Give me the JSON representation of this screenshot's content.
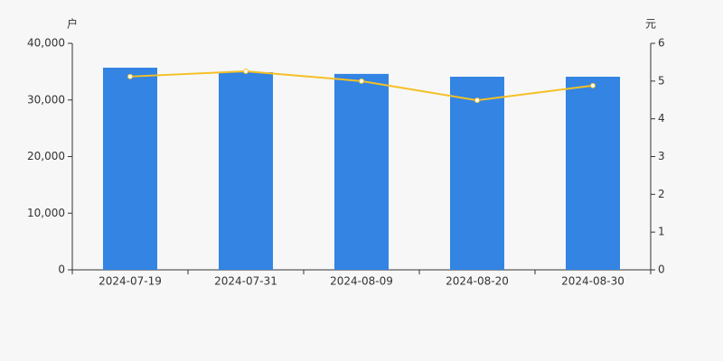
{
  "chart_data": {
    "type": "bar_line",
    "y_label": "户",
    "y2_label": "元",
    "categories": [
      "2024-07-19",
      "2024-07-31",
      "2024-08-09",
      "2024-08-20",
      "2024-08-30"
    ],
    "series": [
      {
        "type": "bar",
        "color": "#3384e3",
        "values": [
          35700,
          34900,
          34600,
          34100,
          34100
        ]
      },
      {
        "type": "line",
        "axis": "y2",
        "color": "#f4c025",
        "values": [
          5.12,
          5.26,
          5.0,
          4.49,
          4.88
        ]
      }
    ],
    "ylim": [
      0,
      40000
    ],
    "yticks": [
      0,
      {
        "value": 10000,
        "label": "10,000"
      },
      {
        "value": 20000,
        "label": "20,000"
      },
      {
        "value": 30000,
        "label": "30,000"
      },
      {
        "value": 40000,
        "label": "40,000"
      }
    ],
    "y2lim": [
      0,
      6
    ],
    "y2ticks": [
      0,
      1,
      2,
      3,
      4,
      5,
      6
    ]
  }
}
